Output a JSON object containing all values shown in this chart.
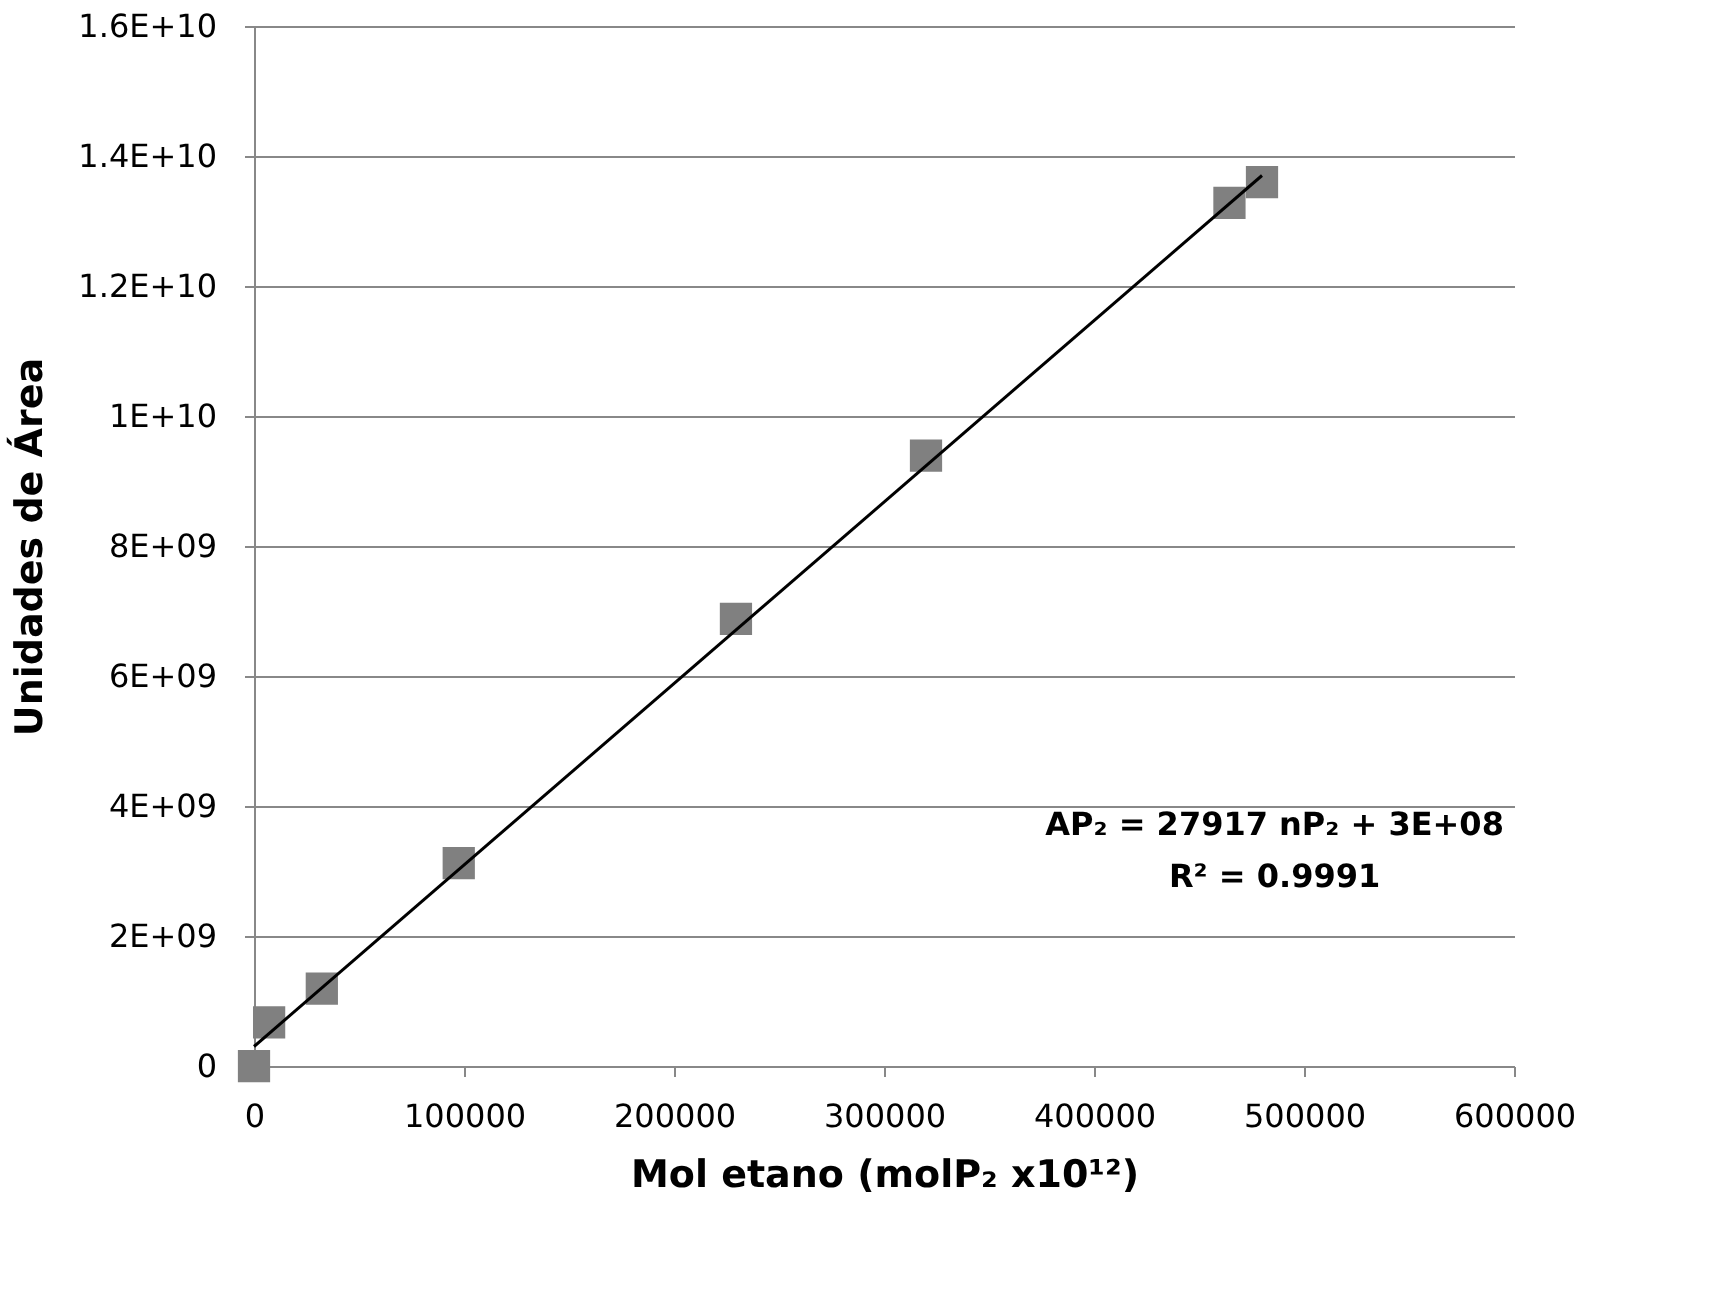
{
  "chart_data": {
    "type": "scatter",
    "xlabel": "Mol etano (molP₂ x10¹²)",
    "ylabel": "Unidades de Área",
    "series": [
      {
        "color": "#808080",
        "marker": "square",
        "x": [
          0,
          7200,
          32300,
          97500,
          229500,
          320000,
          464500,
          480000
        ],
        "values": [
          0,
          670000000,
          1190000000,
          3120000000,
          6880000000,
          9390000000,
          13280000000,
          13600000000
        ]
      },
      {
        "type": "line",
        "color": "#000000",
        "line_style": "solid",
        "x": [
          0,
          480000
        ],
        "values": [
          300000000,
          13700000000
        ]
      }
    ],
    "xlim": [
      0,
      600000
    ],
    "xticks": [
      0,
      100000,
      200000,
      300000,
      400000,
      500000,
      600000
    ],
    "ylim": [
      0,
      16000000000
    ],
    "yticks": [
      0,
      {
        "value": 2000000000,
        "label": "2E+09"
      },
      {
        "value": 4000000000,
        "label": "4E+09"
      },
      {
        "value": 6000000000,
        "label": "6E+09"
      },
      {
        "value": 8000000000,
        "label": "8E+09"
      },
      {
        "value": 10000000000,
        "label": "1E+10"
      },
      {
        "value": 12000000000,
        "label": "1.2E+10"
      },
      {
        "value": 14000000000,
        "label": "1.4E+10"
      },
      {
        "value": 16000000000,
        "label": "1.6E+10"
      }
    ],
    "grid": "y",
    "annotations": [
      "AP₂ = 27917 nP₂ + 3E+08",
      "R² = 0.9991"
    ]
  }
}
